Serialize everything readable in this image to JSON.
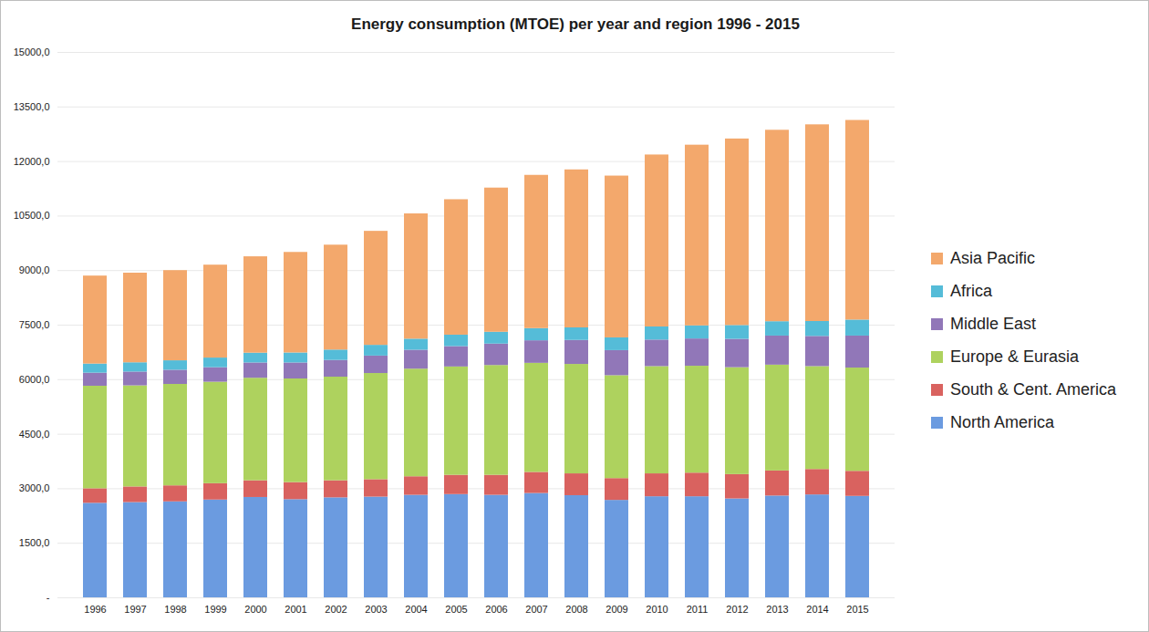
{
  "chart_data": {
    "type": "bar",
    "title": "Energy consumption (MTOE) per year and region 1996 - 2015",
    "stacked": true,
    "grid": true,
    "legend": "right",
    "categories": [
      "1996",
      "1997",
      "1998",
      "1999",
      "2000",
      "2001",
      "2002",
      "2003",
      "2004",
      "2005",
      "2006",
      "2007",
      "2008",
      "2009",
      "2010",
      "2011",
      "2012",
      "2013",
      "2014",
      "2015"
    ],
    "series": [
      {
        "name": "North America",
        "color": "#6b9be0",
        "values": [
          2600,
          2620,
          2640,
          2690,
          2760,
          2700,
          2750,
          2770,
          2820,
          2840,
          2820,
          2870,
          2810,
          2680,
          2780,
          2780,
          2720,
          2800,
          2830,
          2790
        ]
      },
      {
        "name": "South & Cent. America",
        "color": "#d9625f",
        "values": [
          400,
          430,
          440,
          450,
          460,
          470,
          470,
          480,
          510,
          530,
          550,
          580,
          600,
          600,
          630,
          650,
          670,
          690,
          700,
          690
        ]
      },
      {
        "name": "Europe & Eurasia",
        "color": "#aed25e",
        "values": [
          2820,
          2780,
          2790,
          2790,
          2820,
          2850,
          2850,
          2920,
          2960,
          2980,
          3020,
          3000,
          3010,
          2830,
          2950,
          2940,
          2940,
          2910,
          2830,
          2840
        ]
      },
      {
        "name": "Middle East",
        "color": "#9177b8",
        "values": [
          360,
          380,
          390,
          400,
          420,
          440,
          460,
          480,
          520,
          560,
          590,
          620,
          660,
          690,
          730,
          750,
          780,
          800,
          830,
          880
        ]
      },
      {
        "name": "Africa",
        "color": "#55bcd8",
        "values": [
          250,
          255,
          260,
          265,
          270,
          275,
          285,
          295,
          305,
          315,
          325,
          335,
          345,
          350,
          360,
          360,
          380,
          395,
          410,
          440
        ]
      },
      {
        "name": "Asia Pacific",
        "color": "#f3a86c",
        "values": [
          2420,
          2465,
          2480,
          2555,
          2650,
          2765,
          2885,
          3135,
          3445,
          3725,
          3965,
          4215,
          4345,
          4450,
          4730,
          4970,
          5130,
          5265,
          5410,
          5490
        ]
      }
    ],
    "ylim": [
      0,
      15000
    ],
    "yticks": [
      {
        "value": 0,
        "label": "-"
      },
      {
        "value": 1500,
        "label": "1500,0"
      },
      {
        "value": 3000,
        "label": "3000,0"
      },
      {
        "value": 4500,
        "label": "4500,0"
      },
      {
        "value": 6000,
        "label": "6000,0"
      },
      {
        "value": 7500,
        "label": "7500,0"
      },
      {
        "value": 9000,
        "label": "9000,0"
      },
      {
        "value": 10500,
        "label": "10500,0"
      },
      {
        "value": 12000,
        "label": "12000,0"
      },
      {
        "value": 13500,
        "label": "13500,0"
      },
      {
        "value": 15000,
        "label": "15000,0"
      }
    ]
  }
}
